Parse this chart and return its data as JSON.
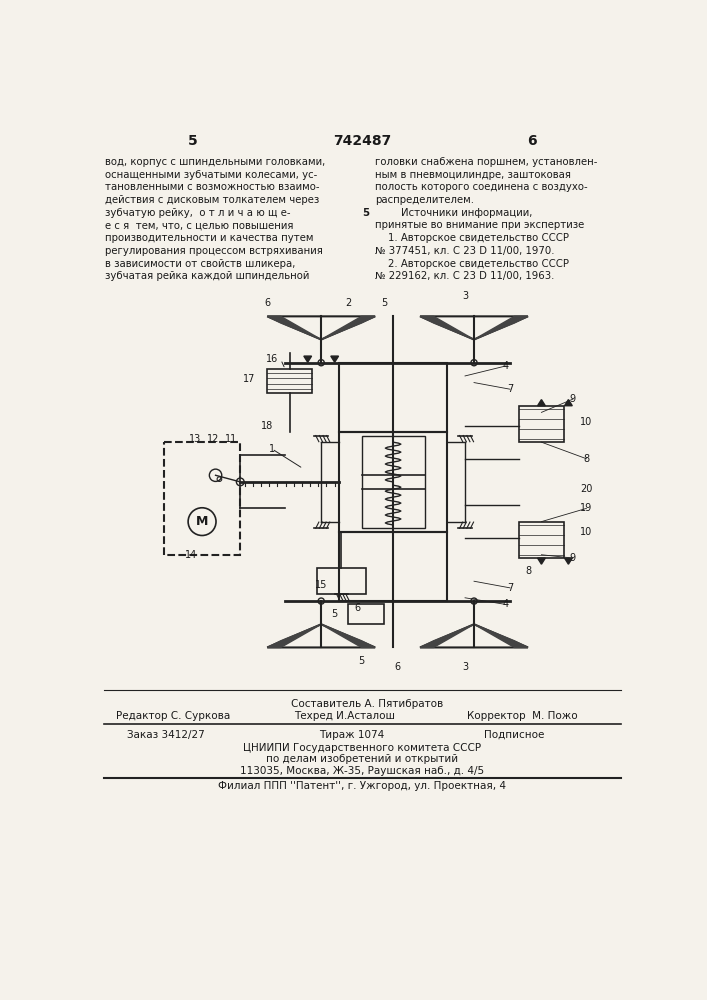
{
  "bg_color": "#f5f2eb",
  "page_width": 7.07,
  "page_height": 10.0,
  "header_number_left": "5",
  "header_patent": "742487",
  "header_number_right": "6",
  "col_left_text": [
    "вод, корпус с шпиндельными головками,",
    "оснащенными зубчатыми колесами, ус-",
    "тановленными с возможностью взаимо-",
    "действия с дисковым толкателем через",
    "зубчатую рейку,  о т л и ч а ю щ е-",
    "е с я  тем, что, с целью повышения",
    "производительности и качества путем",
    "регулирования процессом встряхивания",
    "в зависимости от свойств шликера,",
    "зубчатая рейка каждой шпиндельной"
  ],
  "col_right_text_indent": "        Источники информации,",
  "col_right_text": [
    "головки снабжена поршнем, установлен-",
    "ным в пневмоцилиндре, заштоковая",
    "полость которого соединена с воздухо-",
    "распределителем.",
    "        Источники информации,",
    "принятые во внимание при экспертизе",
    "    1. Авторское свидетельство СССР",
    "№ 377451, кл. С 23 D 11/00, 1970.",
    "    2. Авторское свидетельство СССР",
    "№ 229162, кл. С 23 D 11/00, 1963."
  ],
  "ref_num_5": "5",
  "footer_sestavitel": "Составитель А. Пятибратов",
  "footer_redaktor": "Редактор С. Суркова",
  "footer_tekhred": "Техред И.Асталош",
  "footer_korrektor": "Корректор  М. Пожо",
  "footer_order": "Заказ 3412/27",
  "footer_tirazh": "Тираж 1074",
  "footer_podpisnoe": "Подписное",
  "footer_tsniip1": "ЦНИИПИ Государственного комитета СССР",
  "footer_tsniip2": "по делам изобретений и открытий",
  "footer_tsniip3": "113035, Москва, Ж-35, Раушская наб., д. 4/5",
  "footer_filial": "Филиал ППП ''Патент'', г. Ужгород, ул. Проектная, 4",
  "text_color": "#1a1a1a",
  "line_color": "#222222"
}
